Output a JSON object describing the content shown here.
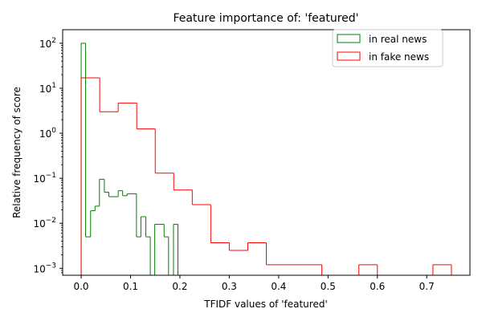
{
  "chart_data": {
    "type": "histogram-step",
    "title": "Feature importance of: 'featured'",
    "xlabel": "TFIDF values of 'featured'",
    "ylabel": "Relative frequency of score",
    "xlim": [
      -0.0375,
      0.7875
    ],
    "ylim": [
      0.0007,
      200
    ],
    "yscale": "log",
    "xticks": [
      0.0,
      0.1,
      0.2,
      0.3,
      0.4,
      0.5,
      0.6,
      0.7
    ],
    "xtick_labels": [
      "0.0",
      "0.1",
      "0.2",
      "0.3",
      "0.4",
      "0.5",
      "0.6",
      "0.7"
    ],
    "yticks": [
      0.001,
      0.01,
      0.1,
      1,
      10,
      100
    ],
    "ytick_labels": [
      {
        "base": "10",
        "exp": "−3"
      },
      {
        "base": "10",
        "exp": "−2"
      },
      {
        "base": "10",
        "exp": "−1"
      },
      {
        "base": "10",
        "exp": "0"
      },
      {
        "base": "10",
        "exp": "1"
      },
      {
        "base": "10",
        "exp": "2"
      }
    ],
    "legend": {
      "position": "upper-right",
      "entries": [
        {
          "label": "in real news",
          "color": "#008000"
        },
        {
          "label": "in fake news",
          "color": "#ff0000"
        }
      ]
    },
    "series": [
      {
        "name": "in real news",
        "color": "#008000",
        "bins": [
          {
            "x0": 0.0,
            "x1": 0.009,
            "y": 100
          },
          {
            "x0": 0.009,
            "x1": 0.019,
            "y": 0.005
          },
          {
            "x0": 0.019,
            "x1": 0.028,
            "y": 0.019
          },
          {
            "x0": 0.028,
            "x1": 0.037,
            "y": 0.024
          },
          {
            "x0": 0.037,
            "x1": 0.047,
            "y": 0.095
          },
          {
            "x0": 0.047,
            "x1": 0.056,
            "y": 0.049
          },
          {
            "x0": 0.056,
            "x1": 0.065,
            "y": 0.039
          },
          {
            "x0": 0.065,
            "x1": 0.075,
            "y": 0.039
          },
          {
            "x0": 0.075,
            "x1": 0.084,
            "y": 0.053
          },
          {
            "x0": 0.084,
            "x1": 0.093,
            "y": 0.041
          },
          {
            "x0": 0.093,
            "x1": 0.103,
            "y": 0.045
          },
          {
            "x0": 0.103,
            "x1": 0.112,
            "y": 0.045
          },
          {
            "x0": 0.112,
            "x1": 0.121,
            "y": 0.005
          },
          {
            "x0": 0.121,
            "x1": 0.131,
            "y": 0.014
          },
          {
            "x0": 0.131,
            "x1": 0.14,
            "y": 0.005
          },
          {
            "x0": 0.14,
            "x1": 0.149,
            "y": 0.0
          },
          {
            "x0": 0.149,
            "x1": 0.159,
            "y": 0.0095
          },
          {
            "x0": 0.159,
            "x1": 0.168,
            "y": 0.0095
          },
          {
            "x0": 0.168,
            "x1": 0.177,
            "y": 0.005
          },
          {
            "x0": 0.177,
            "x1": 0.187,
            "y": 0.0
          },
          {
            "x0": 0.187,
            "x1": 0.196,
            "y": 0.0095
          }
        ]
      },
      {
        "name": "in fake news",
        "color": "#ff0000",
        "bins": [
          {
            "x0": 0.0,
            "x1": 0.0375,
            "y": 17
          },
          {
            "x0": 0.0375,
            "x1": 0.075,
            "y": 3.0
          },
          {
            "x0": 0.075,
            "x1": 0.1125,
            "y": 4.7
          },
          {
            "x0": 0.1125,
            "x1": 0.15,
            "y": 1.25
          },
          {
            "x0": 0.15,
            "x1": 0.1875,
            "y": 0.13
          },
          {
            "x0": 0.1875,
            "x1": 0.225,
            "y": 0.055
          },
          {
            "x0": 0.225,
            "x1": 0.2625,
            "y": 0.026
          },
          {
            "x0": 0.2625,
            "x1": 0.3,
            "y": 0.0037
          },
          {
            "x0": 0.3,
            "x1": 0.3375,
            "y": 0.0025
          },
          {
            "x0": 0.3375,
            "x1": 0.375,
            "y": 0.0037
          },
          {
            "x0": 0.375,
            "x1": 0.4125,
            "y": 0.0012
          },
          {
            "x0": 0.4125,
            "x1": 0.45,
            "y": 0.0012
          },
          {
            "x0": 0.45,
            "x1": 0.4875,
            "y": 0.0012
          },
          {
            "x0": 0.4875,
            "x1": 0.525,
            "y": 0.0
          },
          {
            "x0": 0.525,
            "x1": 0.5625,
            "y": 0.0
          },
          {
            "x0": 0.5625,
            "x1": 0.6,
            "y": 0.0012
          },
          {
            "x0": 0.6,
            "x1": 0.6375,
            "y": 0.0
          },
          {
            "x0": 0.6375,
            "x1": 0.675,
            "y": 0.0
          },
          {
            "x0": 0.675,
            "x1": 0.7125,
            "y": 0.0
          },
          {
            "x0": 0.7125,
            "x1": 0.75,
            "y": 0.0012
          }
        ]
      }
    ]
  }
}
